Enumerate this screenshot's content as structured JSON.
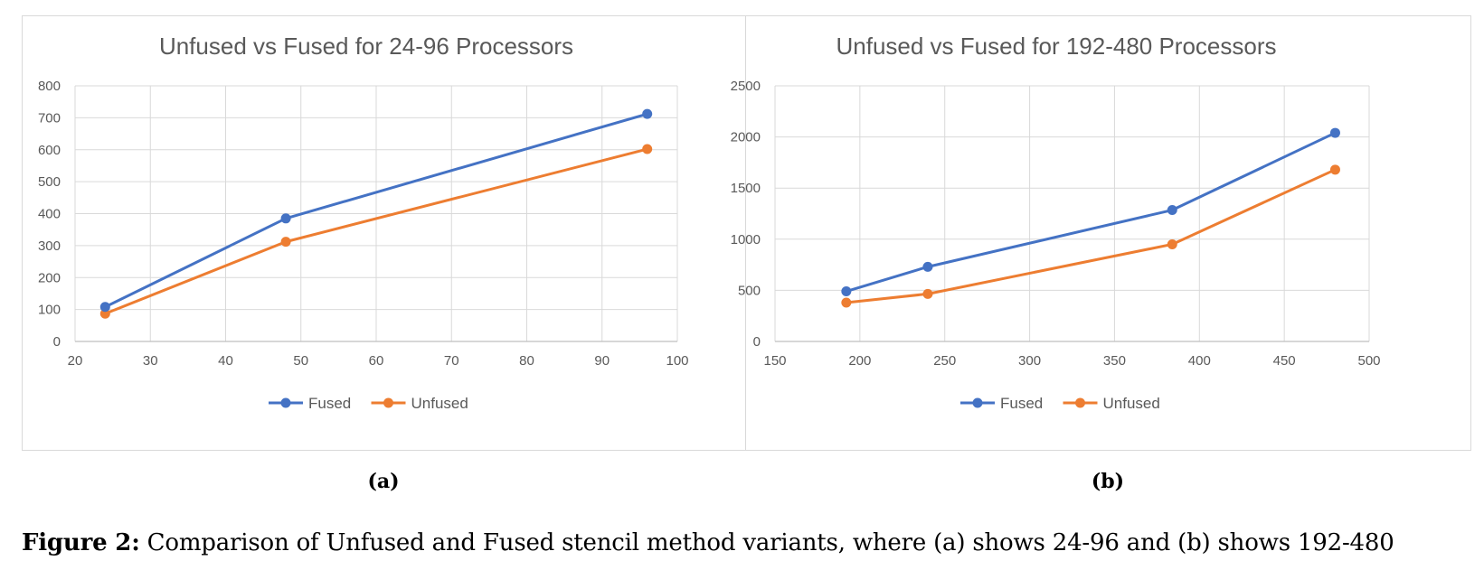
{
  "chart_data": [
    {
      "type": "line",
      "title": "Unfused vs Fused for 24-96 Processors",
      "xlabel": "",
      "ylabel": "",
      "xlim": [
        20,
        100
      ],
      "ylim": [
        0,
        800
      ],
      "x_ticks": [
        20,
        30,
        40,
        50,
        60,
        70,
        80,
        90,
        100
      ],
      "y_ticks": [
        0,
        100,
        200,
        300,
        400,
        500,
        600,
        700,
        800
      ],
      "grid": true,
      "legend_position": "bottom",
      "x": [
        24,
        48,
        96
      ],
      "series": [
        {
          "name": "Fused",
          "color": "#4472c4",
          "values": [
            108,
            385,
            712
          ]
        },
        {
          "name": "Unfused",
          "color": "#ed7d31",
          "values": [
            87,
            312,
            602
          ]
        }
      ]
    },
    {
      "type": "line",
      "title": "Unfused vs Fused for 192-480 Processors",
      "xlabel": "",
      "ylabel": "",
      "xlim": [
        150,
        500
      ],
      "ylim": [
        0,
        2500
      ],
      "x_ticks": [
        150,
        200,
        250,
        300,
        350,
        400,
        450,
        500
      ],
      "y_ticks": [
        0,
        500,
        1000,
        1500,
        2000,
        2500
      ],
      "grid": true,
      "legend_position": "bottom",
      "x": [
        192,
        240,
        384,
        480
      ],
      "series": [
        {
          "name": "Fused",
          "color": "#4472c4",
          "values": [
            490,
            730,
            1285,
            2040
          ]
        },
        {
          "name": "Unfused",
          "color": "#ed7d31",
          "values": [
            380,
            465,
            950,
            1680
          ]
        }
      ]
    }
  ],
  "panel_labels": [
    "(a)",
    "(b)"
  ],
  "caption": {
    "label": "Figure 2:",
    "text": " Comparison of Unfused and Fused stencil method variants, where (a) shows 24-96 and (b) shows 192-480"
  }
}
